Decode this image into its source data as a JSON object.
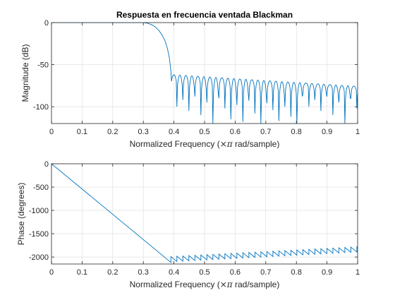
{
  "chart_data": [
    {
      "type": "line",
      "title": "Respuesta en frecuencia ventada Blackman",
      "xlabel_prefix": "Normalized Frequency  (",
      "xlabel_symbol": "×π",
      "xlabel_suffix": " rad/sample)",
      "ylabel": "Magnitude (dB)",
      "xlim": [
        0,
        1
      ],
      "ylim": [
        -120,
        0
      ],
      "xticks": [
        0,
        0.1,
        0.2,
        0.3,
        0.4,
        0.5,
        0.6,
        0.7,
        0.8,
        0.9,
        1
      ],
      "xtick_labels": [
        "0",
        "0.1",
        "0.2",
        "0.3",
        "0.4",
        "0.5",
        "0.6",
        "0.7",
        "0.8",
        "0.9",
        "1"
      ],
      "yticks": [
        0,
        -50,
        -100
      ],
      "ytick_labels": [
        "0",
        "-50",
        "-100"
      ],
      "grid": true,
      "line_color": "#0072BD",
      "passband": {
        "x": [
          0,
          0.3
        ],
        "y": [
          0,
          0
        ]
      },
      "transition": {
        "x": [
          0.3,
          0.31,
          0.32,
          0.33,
          0.34,
          0.35,
          0.36,
          0.37,
          0.375,
          0.38,
          0.385,
          0.39
        ],
        "y": [
          0,
          -0.5,
          -1.5,
          -3,
          -5.5,
          -9,
          -14,
          -21,
          -26,
          -33,
          -42,
          -57
        ]
      },
      "null_depth_pattern": [
        -85,
        -100,
        -92,
        -105,
        -88,
        -110,
        -95,
        -120,
        -90,
        -102,
        -115,
        -98,
        -118,
        -93,
        -108,
        -120,
        -96,
        -104,
        -117,
        -100,
        -112,
        -120
      ],
      "stopband": {
        "x_start": 0.39,
        "x_end": 1.0,
        "lobe_width": 0.0196,
        "lobe_peak_start": -62,
        "lobe_peak_end": -76
      }
    },
    {
      "type": "line",
      "title": "",
      "xlabel_prefix": "Normalized Frequency  (",
      "xlabel_symbol": "×π",
      "xlabel_suffix": " rad/sample)",
      "ylabel": "Phase (degrees)",
      "xlim": [
        0,
        1
      ],
      "ylim": [
        -2150,
        0
      ],
      "xticks": [
        0,
        0.1,
        0.2,
        0.3,
        0.4,
        0.5,
        0.6,
        0.7,
        0.8,
        0.9,
        1
      ],
      "xtick_labels": [
        "0",
        "0.1",
        "0.2",
        "0.3",
        "0.4",
        "0.5",
        "0.6",
        "0.7",
        "0.8",
        "0.9",
        "1"
      ],
      "yticks": [
        0,
        -500,
        -1000,
        -1500,
        -2000
      ],
      "ytick_labels": [
        "0",
        "-500",
        "-1000",
        "-1500",
        "-2000"
      ],
      "grid": true,
      "line_color": "#0072BD",
      "linear_segment": {
        "x": [
          0,
          0.39
        ],
        "y": [
          0,
          -2115
        ]
      },
      "sawtooth": {
        "x_start": 0.39,
        "x_end": 1.0,
        "period": 0.0196,
        "drop": 106,
        "top_start": -1990,
        "top_end": -1780
      }
    }
  ]
}
